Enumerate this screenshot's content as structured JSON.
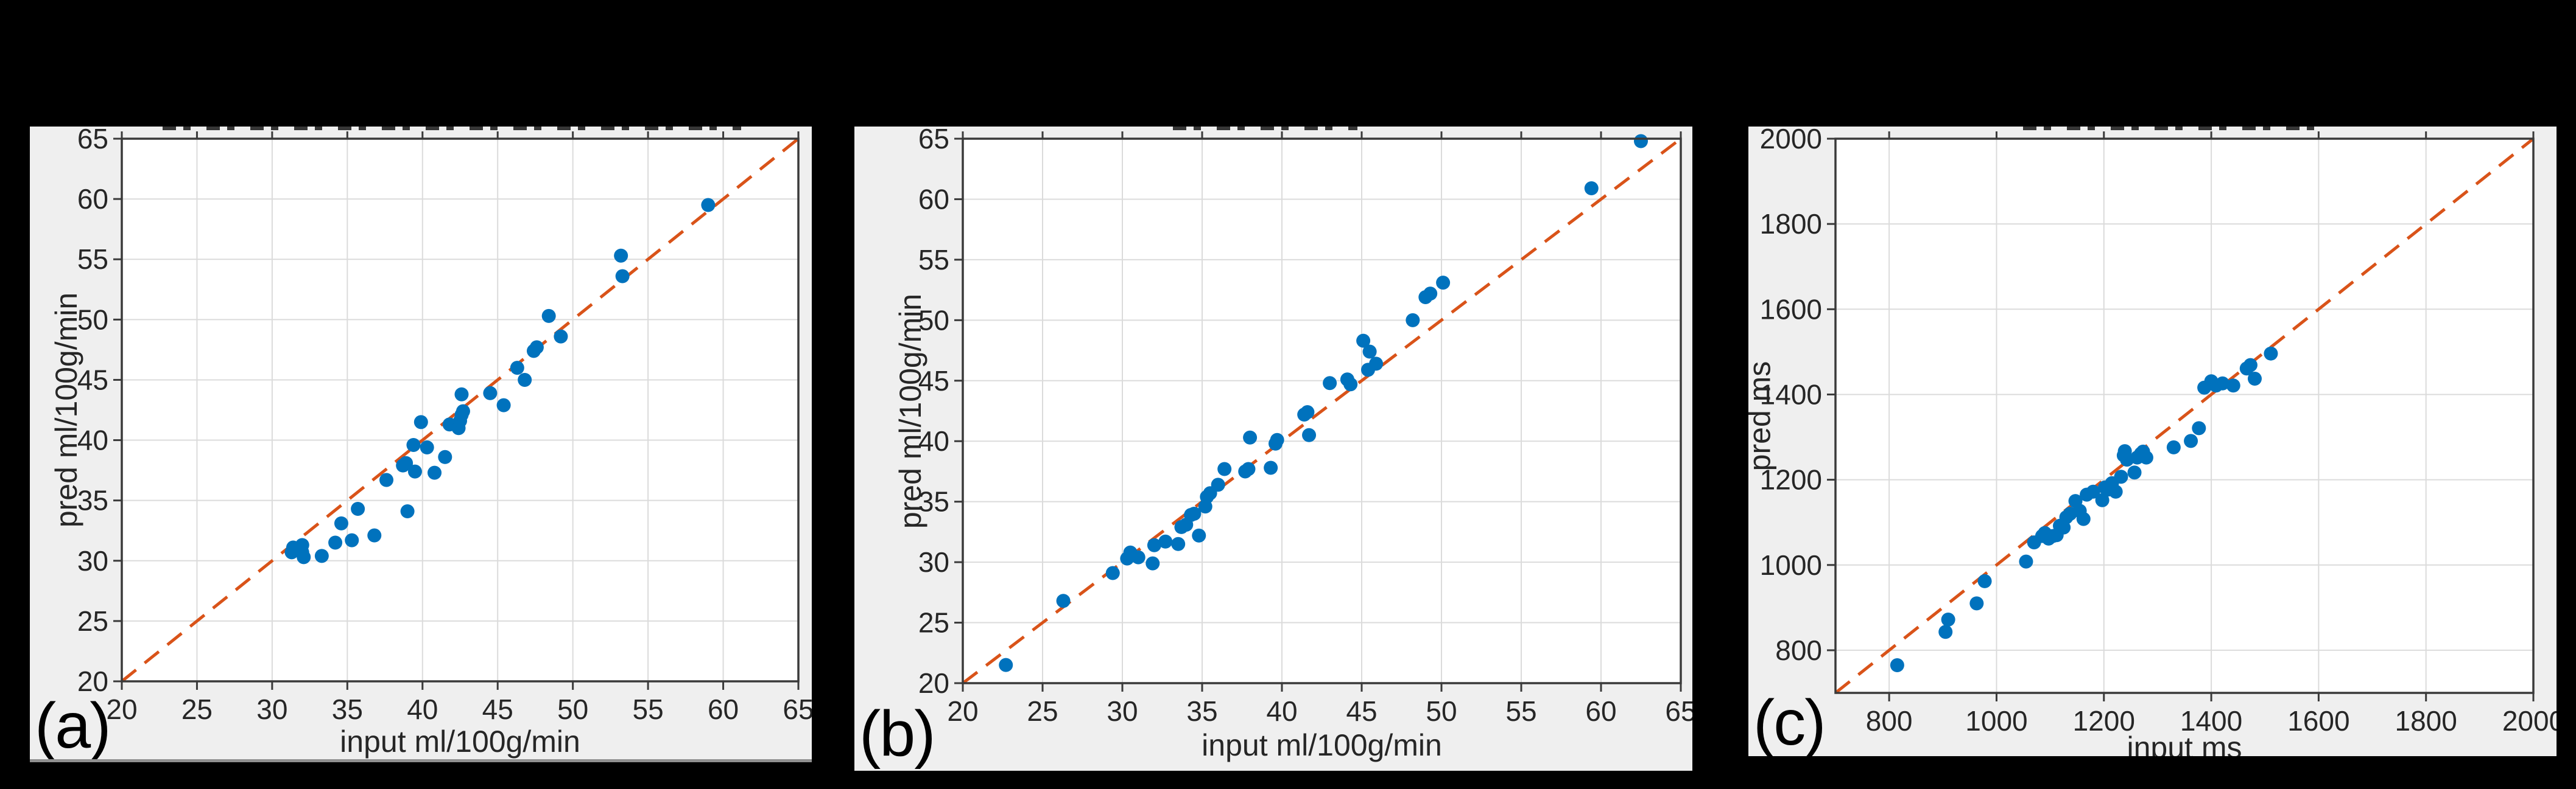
{
  "figure": {
    "description": "Three MATLAB-style scatter subplots comparing input vs predicted values with identity reference line",
    "colors": {
      "figure_bg": "#000000",
      "panel_bg": "#EFEFEF",
      "plot_bg": "#FFFFFF",
      "grid": "#DBDBDB",
      "axis": "#3A3A3A",
      "text": "#262626",
      "marker": "#0072BD",
      "identity_line": "#D95319",
      "panel_a_bottom_edge": "#909090"
    }
  },
  "chart_data": [
    {
      "id": "a",
      "type": "scatter",
      "panel_label": "(a)",
      "title": "",
      "title_clipped": true,
      "xlabel": "input ml/100g/min",
      "ylabel": "pred ml/100g/min",
      "xlim": [
        20,
        65
      ],
      "ylim": [
        20,
        65
      ],
      "xticks": [
        20,
        25,
        30,
        35,
        40,
        45,
        50,
        55,
        60,
        65
      ],
      "yticks": [
        20,
        25,
        30,
        35,
        40,
        45,
        50,
        55,
        60,
        65
      ],
      "grid": true,
      "identity_line": true,
      "points": [
        [
          31.3,
          30.7
        ],
        [
          31.4,
          31.1
        ],
        [
          31.6,
          30.9
        ],
        [
          32.0,
          31.3
        ],
        [
          32.0,
          30.7
        ],
        [
          32.1,
          30.3
        ],
        [
          33.3,
          30.4
        ],
        [
          34.2,
          31.5
        ],
        [
          34.6,
          33.1
        ],
        [
          35.3,
          31.7
        ],
        [
          35.7,
          34.3
        ],
        [
          36.8,
          32.1
        ],
        [
          37.6,
          36.7
        ],
        [
          38.7,
          37.9
        ],
        [
          38.9,
          38.1
        ],
        [
          39.0,
          34.1
        ],
        [
          39.4,
          39.6
        ],
        [
          39.5,
          37.4
        ],
        [
          39.9,
          41.5
        ],
        [
          40.3,
          39.4
        ],
        [
          40.8,
          37.3
        ],
        [
          41.5,
          38.6
        ],
        [
          41.8,
          41.3
        ],
        [
          42.4,
          41.0
        ],
        [
          42.5,
          41.6
        ],
        [
          42.6,
          42.1
        ],
        [
          42.7,
          42.4
        ],
        [
          42.6,
          43.8
        ],
        [
          44.5,
          43.9
        ],
        [
          45.4,
          42.9
        ],
        [
          46.3,
          46.0
        ],
        [
          46.8,
          45.0
        ],
        [
          47.4,
          47.4
        ],
        [
          47.6,
          47.7
        ],
        [
          48.4,
          50.3
        ],
        [
          49.2,
          48.6
        ],
        [
          53.2,
          55.3
        ],
        [
          53.3,
          53.6
        ],
        [
          59.0,
          59.5
        ]
      ]
    },
    {
      "id": "b",
      "type": "scatter",
      "panel_label": "(b)",
      "title": "",
      "title_clipped": true,
      "xlabel": "input ml/100g/min",
      "ylabel": "pred ml/100g/min",
      "xlim": [
        20,
        65
      ],
      "ylim": [
        20,
        65
      ],
      "xticks": [
        20,
        25,
        30,
        35,
        40,
        45,
        50,
        55,
        60,
        65
      ],
      "yticks": [
        20,
        25,
        30,
        35,
        40,
        45,
        50,
        55,
        60,
        65
      ],
      "grid": true,
      "identity_line": true,
      "points": [
        [
          22.7,
          21.5
        ],
        [
          26.3,
          26.8
        ],
        [
          29.4,
          29.1
        ],
        [
          30.3,
          30.3
        ],
        [
          30.5,
          30.8
        ],
        [
          31.0,
          30.4
        ],
        [
          31.9,
          29.9
        ],
        [
          32.0,
          31.4
        ],
        [
          32.7,
          31.7
        ],
        [
          33.5,
          31.5
        ],
        [
          33.7,
          32.9
        ],
        [
          34.0,
          33.1
        ],
        [
          34.3,
          33.9
        ],
        [
          34.5,
          34.0
        ],
        [
          34.8,
          32.2
        ],
        [
          35.2,
          34.6
        ],
        [
          35.3,
          35.4
        ],
        [
          35.5,
          35.7
        ],
        [
          36.0,
          36.4
        ],
        [
          36.4,
          37.7
        ],
        [
          37.7,
          37.5
        ],
        [
          37.9,
          37.7
        ],
        [
          38.0,
          40.3
        ],
        [
          39.3,
          37.8
        ],
        [
          39.6,
          39.8
        ],
        [
          39.7,
          40.1
        ],
        [
          41.4,
          42.2
        ],
        [
          41.6,
          42.4
        ],
        [
          41.7,
          40.5
        ],
        [
          43.0,
          44.8
        ],
        [
          44.1,
          45.1
        ],
        [
          44.3,
          44.7
        ],
        [
          45.1,
          48.3
        ],
        [
          45.4,
          45.9
        ],
        [
          45.5,
          47.4
        ],
        [
          45.9,
          46.4
        ],
        [
          48.2,
          50.0
        ],
        [
          49.0,
          51.9
        ],
        [
          49.3,
          52.2
        ],
        [
          50.1,
          53.1
        ],
        [
          59.4,
          60.9
        ],
        [
          62.5,
          64.8
        ]
      ]
    },
    {
      "id": "c",
      "type": "scatter",
      "panel_label": "(c)",
      "title": "",
      "title_clipped": true,
      "xlabel": "input ms",
      "ylabel": "pred ms",
      "xlim": [
        700,
        2000
      ],
      "ylim": [
        700,
        2000
      ],
      "xticks": [
        800,
        1000,
        1200,
        1400,
        1600,
        1800,
        2000
      ],
      "yticks": [
        800,
        1000,
        1200,
        1400,
        1600,
        1800,
        2000
      ],
      "grid": true,
      "identity_line": true,
      "points": [
        [
          815,
          765
        ],
        [
          905,
          843
        ],
        [
          910,
          872
        ],
        [
          963,
          910
        ],
        [
          978,
          962
        ],
        [
          1055,
          1008
        ],
        [
          1070,
          1053
        ],
        [
          1085,
          1068
        ],
        [
          1090,
          1075
        ],
        [
          1097,
          1062
        ],
        [
          1105,
          1068
        ],
        [
          1112,
          1070
        ],
        [
          1118,
          1092
        ],
        [
          1125,
          1088
        ],
        [
          1130,
          1112
        ],
        [
          1137,
          1120
        ],
        [
          1147,
          1150
        ],
        [
          1155,
          1127
        ],
        [
          1162,
          1108
        ],
        [
          1168,
          1165
        ],
        [
          1180,
          1172
        ],
        [
          1197,
          1152
        ],
        [
          1202,
          1182
        ],
        [
          1208,
          1177
        ],
        [
          1215,
          1192
        ],
        [
          1222,
          1172
        ],
        [
          1232,
          1207
        ],
        [
          1237,
          1257
        ],
        [
          1239,
          1267
        ],
        [
          1243,
          1247
        ],
        [
          1257,
          1217
        ],
        [
          1262,
          1252
        ],
        [
          1269,
          1261
        ],
        [
          1273,
          1266
        ],
        [
          1279,
          1252
        ],
        [
          1330,
          1276
        ],
        [
          1362,
          1291
        ],
        [
          1377,
          1321
        ],
        [
          1387,
          1416
        ],
        [
          1400,
          1431
        ],
        [
          1409,
          1421
        ],
        [
          1421,
          1426
        ],
        [
          1441,
          1421
        ],
        [
          1466,
          1461
        ],
        [
          1473,
          1469
        ],
        [
          1481,
          1437
        ],
        [
          1511,
          1496
        ]
      ]
    }
  ]
}
